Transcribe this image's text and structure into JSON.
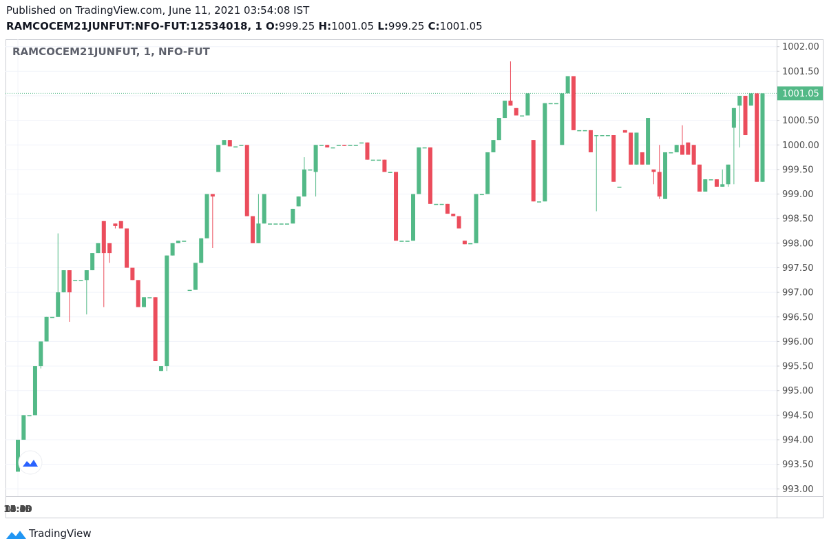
{
  "header": {
    "published": "Published on TradingView.com, June 11, 2021 03:54:08 IST",
    "symbol": "RAMCOCEM21JUNFUT:NFO-FUT:12534018, 1",
    "ohlc": [
      {
        "label": "O:",
        "value": 999.25
      },
      {
        "label": "H:",
        "value": 1001.05
      },
      {
        "label": "L:",
        "value": 999.25
      },
      {
        "label": "C:",
        "value": 1001.05
      }
    ]
  },
  "footer": {
    "brand": "TradingView"
  },
  "chart_data": {
    "type": "candlestick",
    "title": "RAMCOCEM21JUNFUT, 1, NFO-FUT",
    "up_color": "#53b987",
    "down_color": "#eb4d5c",
    "grid": true,
    "last_price": 1001.05,
    "ylim": [
      992.85,
      1002.15
    ],
    "yticks": [
      {
        "value": 993,
        "label": "993.00"
      },
      {
        "value": 993.5,
        "label": "993.50"
      },
      {
        "value": 994,
        "label": "994.00"
      },
      {
        "value": 994.5,
        "label": "994.50"
      },
      {
        "value": 995,
        "label": "995.00"
      },
      {
        "value": 995.5,
        "label": "995.50"
      },
      {
        "value": 996,
        "label": "996.00"
      },
      {
        "value": 996.5,
        "label": "996.50"
      },
      {
        "value": 997,
        "label": "997.00"
      },
      {
        "value": 997.5,
        "label": "997.50"
      },
      {
        "value": 998,
        "label": "998.00"
      },
      {
        "value": 998.5,
        "label": "998.50"
      },
      {
        "value": 999,
        "label": "999.00"
      },
      {
        "value": 999.5,
        "label": "999.50"
      },
      {
        "value": 1000,
        "label": "1000.00"
      },
      {
        "value": 1000.5,
        "label": "1000.50"
      },
      {
        "value": 1001,
        "label": "1001.00"
      },
      {
        "value": 1001.5,
        "label": "1001.50"
      },
      {
        "value": 1002,
        "label": "1002.00"
      }
    ],
    "xticks": [
      "13:30",
      "13:45",
      "14:00",
      "14:15",
      "14:30",
      "14:45",
      "15:00",
      "15:15",
      "09:15"
    ],
    "x": [],
    "ohlc": [
      [
        993.35,
        994.0,
        993.35,
        994.0
      ],
      [
        994.0,
        994.5,
        994.0,
        994.5
      ],
      [
        994.5,
        994.5,
        994.5,
        994.5
      ],
      [
        994.5,
        995.5,
        994.5,
        995.5
      ],
      [
        995.5,
        996.0,
        995.45,
        996.0
      ],
      [
        996.0,
        996.5,
        996.0,
        996.5
      ],
      [
        996.5,
        996.5,
        996.5,
        996.5
      ],
      [
        996.5,
        998.2,
        996.5,
        997.0
      ],
      [
        997.0,
        997.45,
        997.0,
        997.45
      ],
      [
        997.45,
        997.45,
        996.4,
        997.0
      ],
      [
        997.25,
        997.25,
        997.25,
        997.25
      ],
      [
        997.25,
        997.25,
        997.25,
        997.25
      ],
      [
        997.25,
        997.45,
        996.55,
        997.45
      ],
      [
        997.45,
        997.8,
        997.45,
        997.8
      ],
      [
        997.8,
        998.0,
        997.8,
        998.0
      ],
      [
        998.45,
        998.45,
        996.7,
        997.8
      ],
      [
        998.0,
        998.0,
        997.6,
        997.8
      ],
      [
        998.4,
        998.4,
        998.3,
        998.35
      ],
      [
        998.45,
        998.45,
        998.3,
        998.3
      ],
      [
        998.3,
        998.3,
        997.5,
        997.5
      ],
      [
        997.5,
        997.5,
        997.25,
        997.25
      ],
      [
        997.25,
        997.25,
        996.7,
        996.7
      ],
      [
        996.7,
        996.9,
        996.7,
        996.9
      ],
      [
        996.9,
        996.9,
        996.9,
        996.9
      ],
      [
        996.9,
        996.9,
        995.6,
        995.6
      ],
      [
        995.4,
        995.5,
        995.4,
        995.5
      ],
      [
        995.5,
        997.75,
        995.4,
        997.75
      ],
      [
        997.75,
        998.0,
        997.75,
        998.0
      ],
      [
        998.0,
        998.05,
        998.0,
        998.05
      ],
      [
        998.05,
        998.05,
        998.05,
        998.05
      ],
      [
        997.05,
        997.05,
        997.05,
        997.05
      ],
      [
        997.05,
        997.6,
        997.05,
        997.6
      ],
      [
        997.6,
        998.1,
        997.6,
        998.1
      ],
      [
        998.1,
        999.0,
        998.1,
        999.0
      ],
      [
        999.0,
        999.0,
        997.9,
        998.95
      ],
      [
        999.45,
        1000.0,
        999.45,
        1000.0
      ],
      [
        1000.0,
        1000.1,
        1000.0,
        1000.1
      ],
      [
        1000.1,
        1000.1,
        999.97,
        999.97
      ],
      [
        999.97,
        999.97,
        999.97,
        999.97
      ],
      [
        1000.0,
        1000.0,
        1000.0,
        1000.0
      ],
      [
        1000.0,
        1000.0,
        998.55,
        998.55
      ],
      [
        998.55,
        998.55,
        998.0,
        998.0
      ],
      [
        998.0,
        999.0,
        998.0,
        998.4
      ],
      [
        998.4,
        999.0,
        998.4,
        999.0
      ],
      [
        998.4,
        998.4,
        998.4,
        998.4
      ],
      [
        998.4,
        998.4,
        998.4,
        998.4
      ],
      [
        998.4,
        998.4,
        998.4,
        998.4
      ],
      [
        998.4,
        998.4,
        998.4,
        998.4
      ],
      [
        998.4,
        998.7,
        998.4,
        998.7
      ],
      [
        998.75,
        998.95,
        998.75,
        998.95
      ],
      [
        998.95,
        999.75,
        998.95,
        999.5
      ],
      [
        999.5,
        999.5,
        999.5,
        999.5
      ],
      [
        999.45,
        1000.0,
        998.95,
        1000.0
      ],
      [
        1000.0,
        1000.0,
        1000.0,
        1000.0
      ],
      [
        1000.0,
        1000.0,
        999.95,
        999.95
      ],
      [
        999.95,
        999.95,
        999.95,
        999.95
      ],
      [
        1000.0,
        1000.0,
        1000.0,
        1000.0
      ],
      [
        1000.0,
        1000.0,
        999.98,
        999.98
      ],
      [
        1000.0,
        1000.0,
        1000.0,
        1000.0
      ],
      [
        1000.0,
        1000.0,
        1000.0,
        1000.0
      ],
      [
        1000.05,
        1000.05,
        1000.05,
        1000.05
      ],
      [
        1000.05,
        1000.05,
        999.7,
        999.7
      ],
      [
        999.7,
        999.7,
        999.7,
        999.7
      ],
      [
        999.7,
        999.7,
        999.7,
        999.7
      ],
      [
        999.7,
        999.7,
        999.45,
        999.45
      ],
      [
        999.45,
        999.45,
        999.45,
        999.45
      ],
      [
        999.45,
        999.45,
        998.05,
        998.05
      ],
      [
        998.05,
        998.05,
        998.05,
        998.05
      ],
      [
        998.05,
        998.05,
        998.05,
        998.05
      ],
      [
        998.05,
        999.0,
        998.05,
        999.0
      ],
      [
        999.0,
        999.95,
        999.0,
        999.95
      ],
      [
        999.95,
        999.95,
        999.95,
        999.95
      ],
      [
        999.95,
        999.95,
        998.8,
        998.8
      ],
      [
        998.8,
        998.8,
        998.8,
        998.8
      ],
      [
        998.8,
        998.8,
        998.8,
        998.8
      ],
      [
        998.8,
        998.8,
        998.6,
        998.6
      ],
      [
        998.6,
        998.6,
        998.55,
        998.55
      ],
      [
        998.55,
        998.55,
        998.3,
        998.3
      ],
      [
        998.05,
        998.05,
        997.98,
        997.98
      ],
      [
        998.0,
        998.0,
        998.0,
        998.0
      ],
      [
        998.0,
        999.0,
        998.0,
        999.0
      ],
      [
        999.0,
        999.0,
        999.0,
        999.0
      ],
      [
        999.0,
        999.85,
        999.0,
        999.85
      ],
      [
        999.85,
        1000.1,
        999.85,
        1000.1
      ],
      [
        1000.1,
        1000.55,
        1000.1,
        1000.55
      ],
      [
        1000.55,
        1000.9,
        1000.55,
        1000.9
      ],
      [
        1000.9,
        1001.7,
        1000.8,
        1000.8
      ],
      [
        1000.75,
        1000.75,
        1000.6,
        1000.6
      ],
      [
        1000.6,
        1000.6,
        1000.6,
        1000.6
      ],
      [
        1000.6,
        1001.05,
        1000.6,
        1001.05
      ],
      [
        1000.1,
        1000.1,
        998.85,
        998.85
      ],
      [
        998.85,
        998.85,
        998.85,
        998.85
      ],
      [
        998.85,
        1000.85,
        998.85,
        1000.85
      ],
      [
        1000.85,
        1000.85,
        1000.85,
        1000.85
      ],
      [
        1000.85,
        1000.85,
        1000.85,
        1000.85
      ],
      [
        1000.0,
        1001.05,
        1000.0,
        1001.05
      ],
      [
        1001.05,
        1001.4,
        1001.05,
        1001.4
      ],
      [
        1001.4,
        1001.4,
        1000.3,
        1000.3
      ],
      [
        1000.3,
        1000.3,
        1000.3,
        1000.3
      ],
      [
        1000.3,
        1000.3,
        1000.3,
        1000.3
      ],
      [
        1000.3,
        1000.3,
        999.85,
        999.85
      ],
      [
        1000.2,
        1000.2,
        998.65,
        1000.2
      ],
      [
        1000.2,
        1000.2,
        1000.2,
        1000.2
      ],
      [
        1000.2,
        1000.2,
        1000.2,
        1000.2
      ],
      [
        1000.2,
        1000.2,
        999.25,
        999.25
      ],
      [
        999.15,
        999.15,
        999.15,
        999.15
      ],
      [
        1000.3,
        1000.3,
        1000.25,
        1000.25
      ],
      [
        1000.25,
        1000.25,
        999.6,
        999.6
      ],
      [
        999.6,
        1000.25,
        999.6,
        1000.25
      ],
      [
        999.85,
        999.85,
        999.6,
        999.6
      ],
      [
        999.6,
        1000.55,
        999.6,
        1000.55
      ],
      [
        999.5,
        999.5,
        999.2,
        999.45
      ],
      [
        999.45,
        1000.0,
        998.9,
        998.95
      ],
      [
        998.9,
        999.85,
        998.9,
        999.85
      ],
      [
        999.85,
        999.85,
        999.85,
        999.85
      ],
      [
        999.85,
        1000.0,
        999.85,
        1000.0
      ],
      [
        1000.0,
        1000.4,
        999.8,
        999.8
      ],
      [
        1000.05,
        1000.05,
        999.8,
        999.8
      ],
      [
        1000.0,
        1000.0,
        999.6,
        999.6
      ],
      [
        999.6,
        999.6,
        999.05,
        999.05
      ],
      [
        999.05,
        999.3,
        999.05,
        999.3
      ],
      [
        999.3,
        999.3,
        999.3,
        999.3
      ],
      [
        999.3,
        999.3,
        999.15,
        999.15
      ],
      [
        999.15,
        999.5,
        999.15,
        999.2
      ],
      [
        999.2,
        999.6,
        999.15,
        999.6
      ],
      [
        1000.35,
        1000.75,
        999.2,
        1000.75
      ],
      [
        1000.8,
        1001.0,
        999.95,
        1001.0
      ],
      [
        1001.0,
        1001.0,
        1000.2,
        1000.2
      ],
      [
        1000.8,
        1001.05,
        1000.8,
        1001.05
      ],
      [
        1001.05,
        1001.05,
        999.25,
        999.25
      ],
      [
        999.25,
        1001.05,
        999.25,
        1001.05
      ]
    ]
  }
}
